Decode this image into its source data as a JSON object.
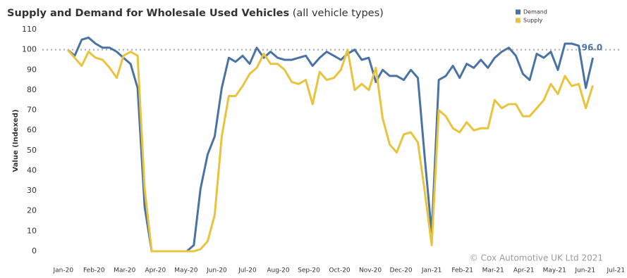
{
  "chart_data": {
    "type": "line",
    "title": "Supply and Demand for Wholesale Used Vehicles",
    "subtitle": "(all vehicle types)",
    "y_label": "Value (Indexed)",
    "source": "© Cox Automotive UK Ltd 2021",
    "x": [
      0.14,
      0.37,
      0.6,
      0.82,
      1.05,
      1.28,
      1.51,
      1.74,
      1.96,
      2.19,
      2.42,
      2.65,
      2.88,
      3.11,
      3.33,
      3.56,
      3.79,
      4.02,
      4.25,
      4.47,
      4.7,
      4.93,
      5.16,
      5.39,
      5.61,
      5.84,
      6.07,
      6.3,
      6.53,
      6.75,
      6.98,
      7.21,
      7.44,
      7.67,
      7.9,
      8.12,
      8.35,
      8.58,
      8.81,
      9.04,
      9.26,
      9.49,
      9.72,
      9.95,
      10.18,
      10.4,
      10.63,
      10.86,
      11.09,
      11.32,
      11.55,
      11.77,
      12.0,
      12.23,
      12.46,
      12.69,
      12.91,
      13.14,
      13.37,
      13.6,
      13.83,
      14.05,
      14.28,
      14.51,
      14.74,
      14.97,
      15.19,
      15.42,
      15.65,
      15.88,
      16.11,
      16.34,
      16.56,
      16.79,
      17.02,
      17.25
    ],
    "series": [
      {
        "name": "Demand",
        "color": "#4a73a3",
        "values": [
          100,
          97,
          105,
          106,
          103,
          101,
          101,
          99,
          96,
          93,
          81,
          22,
          0,
          0,
          0,
          0,
          0,
          0,
          3,
          31,
          48,
          57,
          81,
          96,
          94,
          97,
          93,
          101,
          96,
          99,
          96,
          95,
          95,
          96,
          97,
          92,
          96,
          99,
          97,
          95,
          98,
          100,
          95,
          96,
          84,
          90,
          87,
          87,
          85,
          90,
          86,
          47,
          9,
          85,
          87,
          92,
          86,
          93,
          91,
          95,
          91,
          96,
          99,
          101,
          97,
          88,
          85,
          98,
          96,
          99,
          90,
          103,
          103,
          102,
          81,
          96
        ],
        "value_labels": [
          null,
          null,
          null,
          null,
          null,
          null,
          null,
          null,
          null,
          null,
          null,
          null,
          null,
          null,
          null,
          null,
          null,
          null,
          null,
          null,
          null,
          null,
          null,
          null,
          null,
          null,
          null,
          null,
          null,
          null,
          null,
          null,
          null,
          null,
          null,
          null,
          null,
          null,
          null,
          null,
          null,
          null,
          null,
          null,
          null,
          null,
          null,
          null,
          null,
          null,
          null,
          null,
          null,
          null,
          null,
          null,
          null,
          null,
          null,
          null,
          null,
          null,
          null,
          null,
          null,
          null,
          null,
          null,
          null,
          null,
          null,
          null,
          null,
          null,
          null,
          "96.0"
        ]
      },
      {
        "name": "Supply",
        "color": "#e8c43c",
        "values": [
          100,
          96,
          92,
          99,
          96,
          95,
          91,
          86,
          97,
          99,
          97,
          31,
          0,
          0,
          0,
          0,
          0,
          0,
          0,
          1,
          5,
          18,
          57,
          77,
          77,
          82,
          88,
          91,
          98,
          93,
          93,
          90,
          84,
          83,
          85,
          73,
          89,
          85,
          86,
          90,
          100,
          80,
          83,
          80,
          91,
          66,
          53,
          49,
          58,
          59,
          54,
          30,
          3,
          70,
          67,
          61,
          59,
          64,
          60,
          61,
          61,
          75,
          71,
          73,
          73,
          67,
          67,
          71,
          75,
          83,
          78,
          87,
          82,
          83,
          71,
          82.3
        ]
      }
    ],
    "xlim": [
      -0.5,
      18.2
    ],
    "xticks": [
      {
        "value": 0,
        "label": "Jan-20"
      },
      {
        "value": 1,
        "label": "Feb-20"
      },
      {
        "value": 2,
        "label": "Mar-20"
      },
      {
        "value": 3,
        "label": "Apr-20"
      },
      {
        "value": 4,
        "label": "May-20"
      },
      {
        "value": 5,
        "label": "Jun-20"
      },
      {
        "value": 6,
        "label": "Jul-20"
      },
      {
        "value": 7,
        "label": "Aug-20"
      },
      {
        "value": 8,
        "label": "Sep-20"
      },
      {
        "value": 9,
        "label": "Oct-20"
      },
      {
        "value": 10,
        "label": "Nov-20"
      },
      {
        "value": 11,
        "label": "Dec-20"
      },
      {
        "value": 12,
        "label": "Jan-21"
      },
      {
        "value": 13,
        "label": "Feb-21"
      },
      {
        "value": 14,
        "label": "Mar-21"
      },
      {
        "value": 15,
        "label": "Apr-21"
      },
      {
        "value": 16,
        "label": "May-21"
      },
      {
        "value": 17,
        "label": "Jun-21"
      },
      {
        "value": 18,
        "label": "Jul-21"
      }
    ],
    "ylim": [
      0,
      110
    ],
    "yticks": [
      0,
      10,
      20,
      30,
      40,
      50,
      60,
      70,
      80,
      90,
      100,
      110
    ],
    "reference_line": 100,
    "legend": "top-right"
  }
}
